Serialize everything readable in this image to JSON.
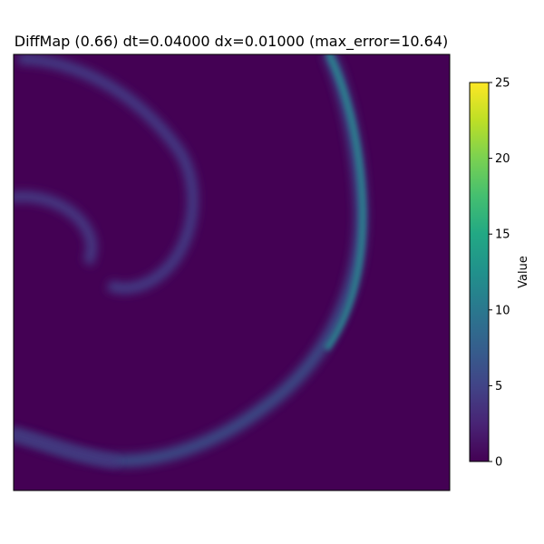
{
  "chart_data": {
    "type": "heatmap",
    "title": "DiffMap (0.66) dt=0.04000 dx=0.01000 (max_error=10.64)",
    "xlabel": "",
    "ylabel": "",
    "colormap": "viridis",
    "colorbar": {
      "label": "Value",
      "vmin": 0,
      "vmax": 25,
      "ticks": [
        0,
        5,
        10,
        15,
        20,
        25
      ],
      "tick_labels": [
        "0",
        "5",
        "10",
        "15",
        "20",
        "25"
      ]
    },
    "background_value": 0,
    "features": [
      {
        "name": "right-arc",
        "peak_value": 10.6
      },
      {
        "name": "middle-arc",
        "peak_value": 4.5
      },
      {
        "name": "upper-left-hook",
        "peak_value": 4.0
      },
      {
        "name": "bottom-arc",
        "peak_value": 3.5
      }
    ],
    "axes_ticks_visible": false
  }
}
